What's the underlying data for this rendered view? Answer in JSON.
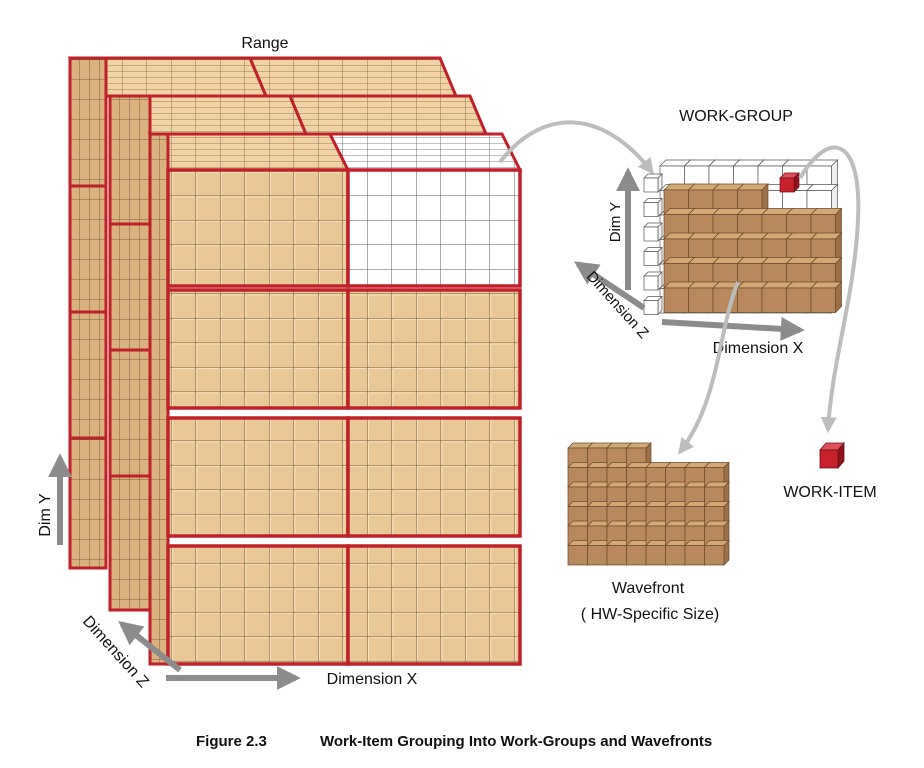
{
  "range_label": "Range",
  "workgroup_label": "WORK-GROUP",
  "workitem_label": "WORK-ITEM",
  "wavefront_label": "Wavefront",
  "wavefront_sublabel": "( HW-Specific Size)",
  "axes": {
    "range_dim_y": "Dim Y",
    "range_dim_z": "Dimension Z",
    "range_dim_x": "Dimension X",
    "wg_dim_y": "Dim Y",
    "wg_dim_z": "Dimension Z",
    "wg_dim_x": "Dimension X"
  },
  "caption": {
    "number": "Figure 2.3",
    "title": "Work-Item Grouping Into Work-Groups and Wavefronts"
  },
  "colors": {
    "tan_face": "#E8C896",
    "tan_line": "#7A6040",
    "red_border": "#C0202A",
    "brown_cube": "#B8895E",
    "brown_top": "#D2A877",
    "brown_side": "#9C7048",
    "arrow_gray": "#8C8C8C",
    "connector_gray": "#BDBDBD",
    "workitem_red": "#C8202C"
  }
}
